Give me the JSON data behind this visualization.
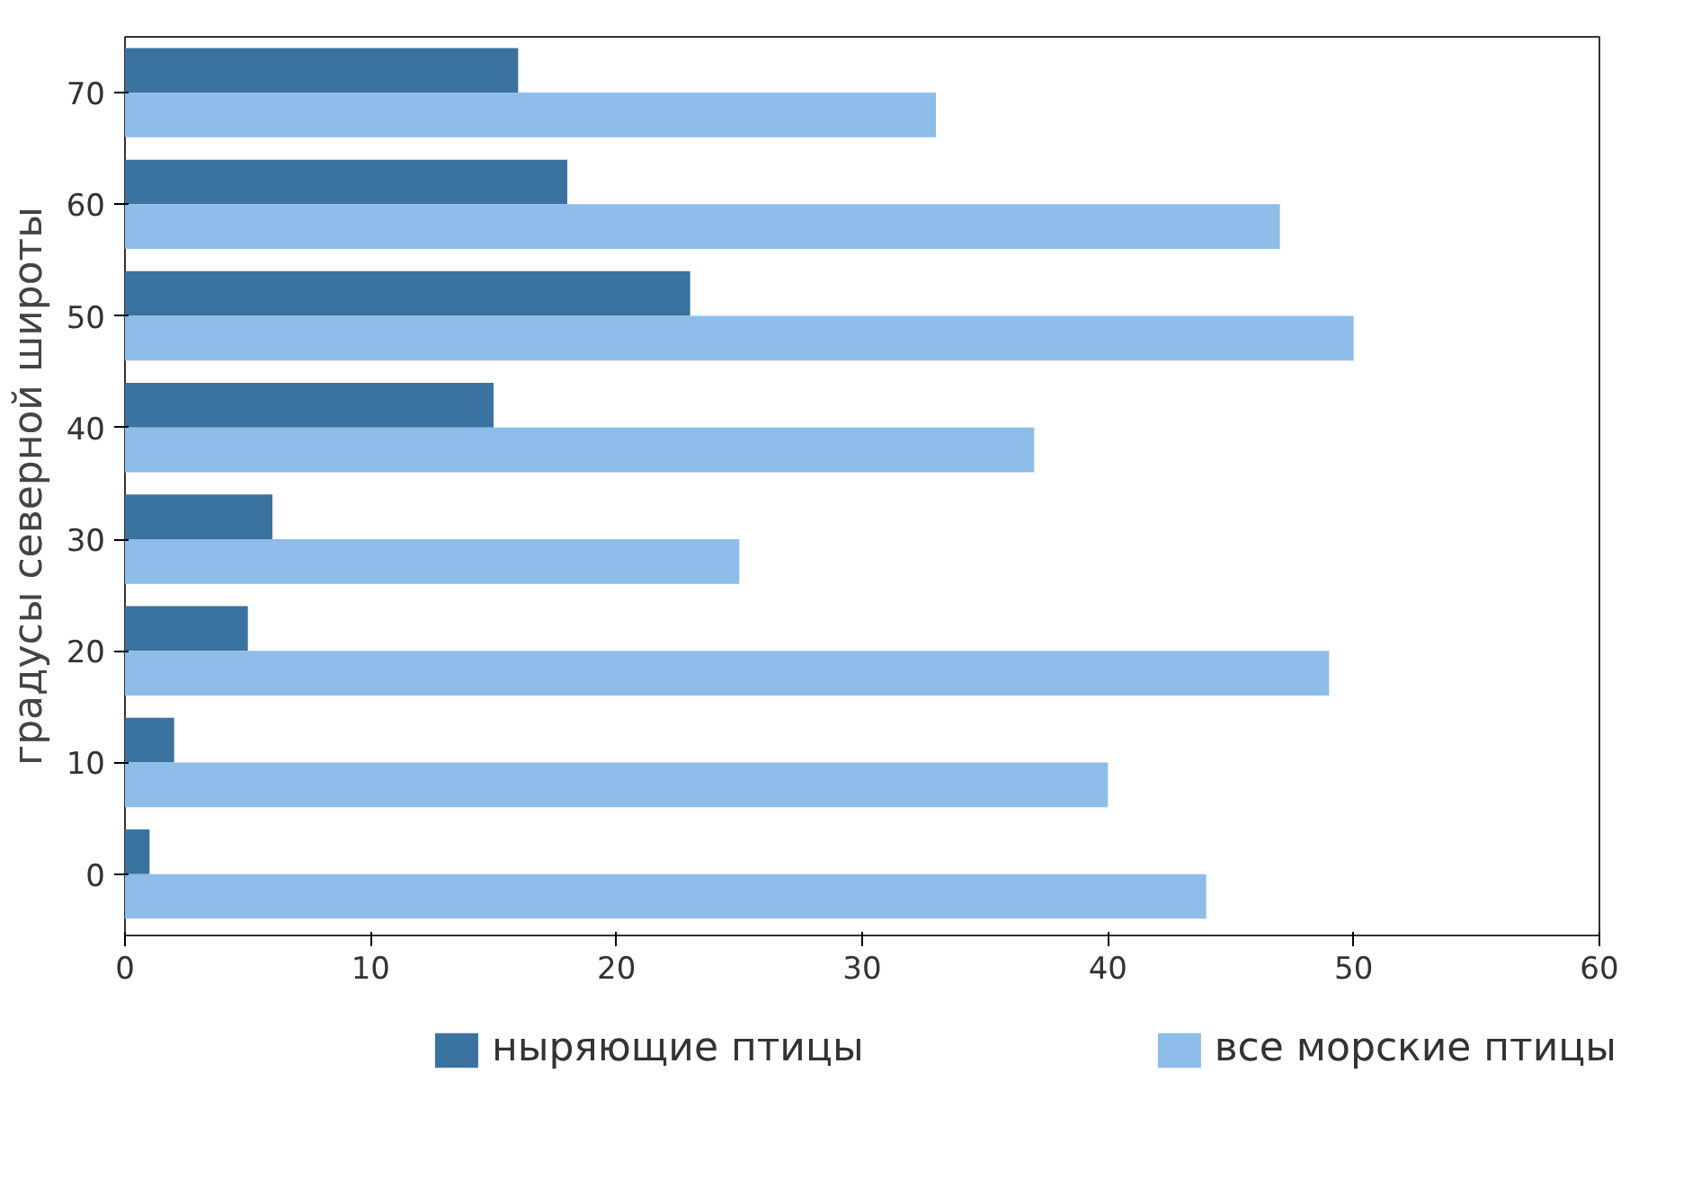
{
  "chart_data": {
    "type": "bar",
    "orientation": "horizontal",
    "ylabel": "градусы северной широты",
    "categories": [
      "70",
      "60",
      "50",
      "40",
      "30",
      "20",
      "10",
      "0"
    ],
    "series": [
      {
        "name": "ныряющие птицы",
        "color": "#3a72a0",
        "values": [
          16,
          18,
          23,
          15,
          6,
          5,
          2,
          1
        ]
      },
      {
        "name": "все морские птицы",
        "color": "#8dbde8",
        "values": [
          33,
          47,
          50,
          37,
          25,
          49,
          40,
          44
        ]
      }
    ],
    "xlim": [
      0,
      60
    ],
    "xticks": [
      0,
      10,
      20,
      30,
      40,
      50,
      60
    ],
    "grid": false,
    "legend": "bottom"
  }
}
